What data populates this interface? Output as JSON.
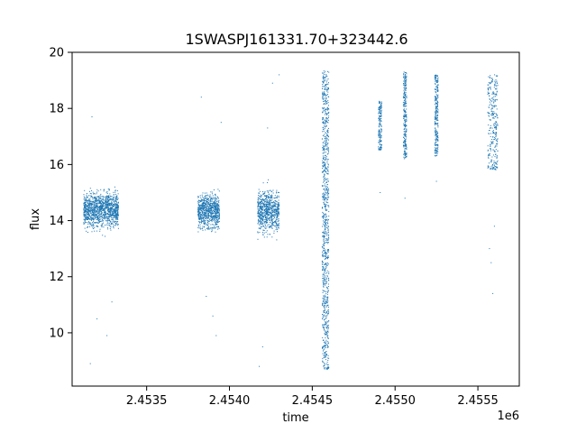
{
  "chart_data": {
    "type": "scatter",
    "title": "1SWASPJ161331.70+323442.6",
    "xlabel": "time",
    "ylabel": "flux",
    "x_offset_label": "1e6",
    "xlim": [
      2453050,
      2455750
    ],
    "ylim": [
      8.1,
      20
    ],
    "x_ticks": [
      {
        "value": 2453500,
        "label": "2.4535"
      },
      {
        "value": 2454000,
        "label": "2.4540"
      },
      {
        "value": 2454500,
        "label": "2.4545"
      },
      {
        "value": 2455000,
        "label": "2.4550"
      },
      {
        "value": 2455500,
        "label": "2.4555"
      }
    ],
    "y_ticks": [
      {
        "value": 10,
        "label": "10"
      },
      {
        "value": 12,
        "label": "12"
      },
      {
        "value": 14,
        "label": "14"
      },
      {
        "value": 16,
        "label": "16"
      },
      {
        "value": 18,
        "label": "18"
      },
      {
        "value": 20,
        "label": "20"
      }
    ],
    "grid": false,
    "marker_color": "#1f77b4",
    "series": [
      {
        "values_note": "dense observation clusters (approximate)",
        "clusters": [
          {
            "x_range": [
              2453120,
              2453330
            ],
            "flux_range": [
              12.9,
              15.9
            ],
            "outliers": [
              [
                2453170,
                17.7
              ],
              [
                2453160,
                8.9
              ],
              [
                2453200,
                10.5
              ],
              [
                2453260,
                9.9
              ],
              [
                2453290,
                11.1
              ]
            ]
          },
          {
            "x_range": [
              2453810,
              2453940
            ],
            "flux_range": [
              12.9,
              15.8
            ],
            "outliers": [
              [
                2453830,
                18.4
              ],
              [
                2453860,
                11.3
              ],
              [
                2453900,
                10.6
              ],
              [
                2453920,
                9.9
              ],
              [
                2453950,
                17.5
              ]
            ]
          },
          {
            "x_range": [
              2454170,
              2454300
            ],
            "flux_range": [
              12.6,
              16.1
            ],
            "outliers": [
              [
                2454180,
                8.8
              ],
              [
                2454200,
                9.5
              ],
              [
                2454230,
                17.3
              ],
              [
                2454260,
                18.9
              ],
              [
                2454300,
                19.2
              ]
            ]
          },
          {
            "x_range": [
              2454560,
              2454600
            ],
            "flux_range": [
              8.7,
              19.4
            ],
            "outliers": []
          },
          {
            "x_range": [
              2454900,
              2454920
            ],
            "flux_range": [
              16.5,
              18.3
            ],
            "outliers": [
              [
                2454910,
                15.0
              ]
            ]
          },
          {
            "x_range": [
              2455050,
              2455070
            ],
            "flux_range": [
              16.2,
              19.3
            ],
            "outliers": [
              [
                2455060,
                14.8
              ]
            ]
          },
          {
            "x_range": [
              2455240,
              2455260
            ],
            "flux_range": [
              16.3,
              19.2
            ],
            "outliers": [
              [
                2455250,
                15.4
              ]
            ]
          },
          {
            "x_range": [
              2455560,
              2455620
            ],
            "flux_range": [
              15.8,
              19.2
            ],
            "outliers": [
              [
                2455570,
                13.0
              ],
              [
                2455580,
                12.5
              ],
              [
                2455590,
                11.4
              ],
              [
                2455600,
                13.8
              ]
            ]
          }
        ]
      }
    ]
  }
}
